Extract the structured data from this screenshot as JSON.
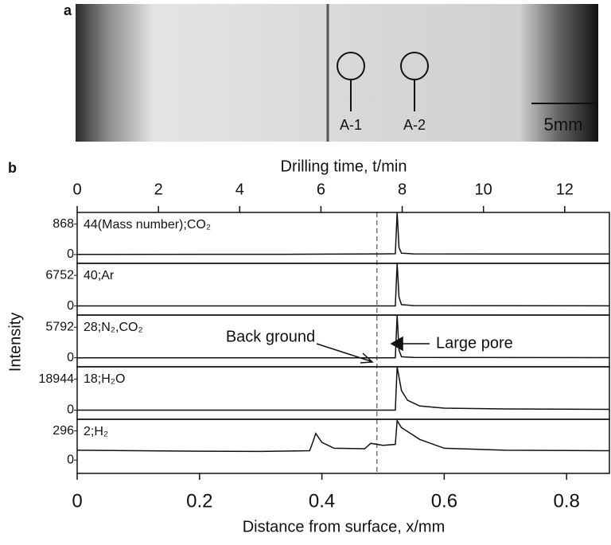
{
  "figure": {
    "panel_a": {
      "label": "a",
      "markers": [
        "A-1",
        "A-2"
      ],
      "scale_bar": "5mm"
    },
    "panel_b_label": "b"
  },
  "chart_data": {
    "type": "line",
    "xlabel": "Distance from surface, x/mm",
    "xlim": [
      0,
      0.87
    ],
    "xticks": [
      0,
      0.2,
      0.4,
      0.6,
      0.8
    ],
    "x2label": "Drilling time, t/min",
    "x2lim": [
      0,
      13.1
    ],
    "x2ticks": [
      0,
      2,
      4,
      6,
      8,
      10,
      12
    ],
    "ylabel": "Intensity",
    "color": "#111111",
    "background_x": 0.49,
    "annotations": [
      "Back ground",
      "Large pore"
    ],
    "panels": [
      {
        "label": "44(Mass number);CO₂",
        "ylim": [
          -250,
          1200
        ],
        "yticks": [
          0,
          868
        ],
        "x": [
          0,
          0.34,
          0.5,
          0.52,
          0.523,
          0.526,
          0.53,
          0.55,
          0.87
        ],
        "values": [
          5,
          8,
          20,
          25,
          1200,
          200,
          40,
          20,
          15
        ]
      },
      {
        "label": "40;Ar",
        "ylim": [
          -2000,
          9400
        ],
        "yticks": [
          0,
          6752
        ],
        "x": [
          0,
          0.52,
          0.523,
          0.526,
          0.53,
          0.55,
          0.87
        ],
        "values": [
          20,
          20,
          9400,
          2000,
          300,
          80,
          40
        ]
      },
      {
        "label": "28;N₂,CO₂",
        "ylim": [
          -1700,
          8100
        ],
        "yticks": [
          0,
          5792
        ],
        "x": [
          0,
          0.52,
          0.523,
          0.526,
          0.53,
          0.55,
          0.87
        ],
        "values": [
          10,
          10,
          8100,
          1500,
          200,
          60,
          30
        ]
      },
      {
        "label": "18;H₂O",
        "ylim": [
          -5600,
          26500
        ],
        "yticks": [
          0,
          18944
        ],
        "x": [
          0,
          0.52,
          0.523,
          0.53,
          0.54,
          0.56,
          0.6,
          0.7,
          0.87
        ],
        "values": [
          0,
          0,
          26500,
          12000,
          6000,
          2500,
          1200,
          700,
          500
        ]
      },
      {
        "label": "2;H₂",
        "ylim": [
          -135,
          414
        ],
        "yticks": [
          0,
          296
        ],
        "x": [
          0,
          0.1,
          0.2,
          0.3,
          0.38,
          0.385,
          0.39,
          0.4,
          0.42,
          0.47,
          0.48,
          0.5,
          0.52,
          0.523,
          0.53,
          0.55,
          0.56,
          0.6,
          0.7,
          0.87
        ],
        "values": [
          100,
          95,
          90,
          88,
          95,
          180,
          270,
          180,
          120,
          115,
          170,
          150,
          160,
          400,
          330,
          250,
          210,
          120,
          100,
          95
        ]
      }
    ]
  }
}
